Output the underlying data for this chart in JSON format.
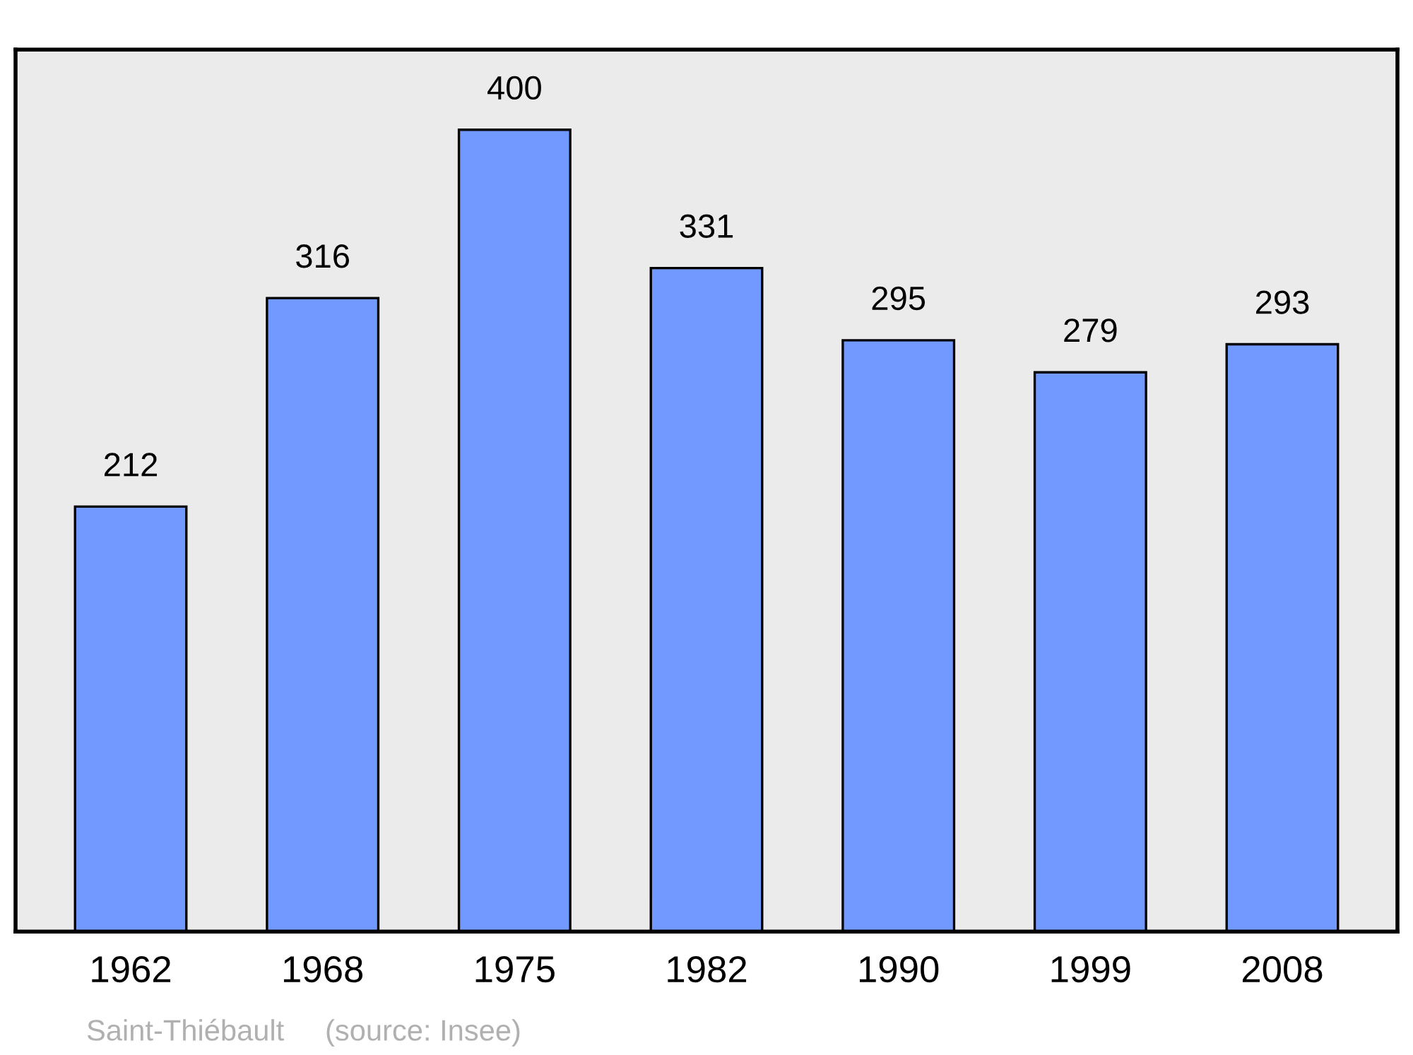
{
  "chart_data": {
    "type": "bar",
    "categories": [
      "1962",
      "1968",
      "1975",
      "1982",
      "1990",
      "1999",
      "2008"
    ],
    "values": [
      212,
      316,
      400,
      331,
      295,
      279,
      293
    ],
    "color": "#7299ff",
    "ylim": [
      0,
      440
    ],
    "tick_labels": "x",
    "data_labels": true,
    "grid": false,
    "annotations": [
      "Saint-Thiébault",
      "(source: Insee)"
    ]
  }
}
